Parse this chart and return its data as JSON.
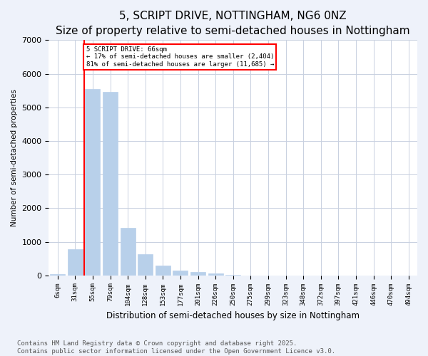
{
  "title": "5, SCRIPT DRIVE, NOTTINGHAM, NG6 0NZ",
  "subtitle": "Size of property relative to semi-detached houses in Nottingham",
  "xlabel": "Distribution of semi-detached houses by size in Nottingham",
  "ylabel": "Number of semi-detached properties",
  "categories": [
    "6sqm",
    "31sqm",
    "55sqm",
    "79sqm",
    "104sqm",
    "128sqm",
    "153sqm",
    "177sqm",
    "201sqm",
    "226sqm",
    "250sqm",
    "275sqm",
    "299sqm",
    "323sqm",
    "348sqm",
    "372sqm",
    "397sqm",
    "421sqm",
    "446sqm",
    "470sqm",
    "494sqm"
  ],
  "values": [
    30,
    780,
    5550,
    5450,
    1420,
    620,
    290,
    150,
    100,
    55,
    12,
    4,
    1,
    0,
    0,
    0,
    0,
    0,
    0,
    0,
    0
  ],
  "bar_color": "#b8d0ea",
  "bar_edge_color": "#b8d0ea",
  "vline_x": 1.5,
  "vline_color": "red",
  "vline_label_text": "5 SCRIPT DRIVE: 66sqm",
  "annotation_smaller": "← 17% of semi-detached houses are smaller (2,404)",
  "annotation_larger": "81% of semi-detached houses are larger (11,685) →",
  "annotation_box_color": "red",
  "ylim": [
    0,
    7000
  ],
  "yticks": [
    0,
    1000,
    2000,
    3000,
    4000,
    5000,
    6000,
    7000
  ],
  "footer_line1": "Contains HM Land Registry data © Crown copyright and database right 2025.",
  "footer_line2": "Contains public sector information licensed under the Open Government Licence v3.0.",
  "bg_color": "#eef2fa",
  "plot_bg_color": "#ffffff",
  "grid_color": "#c8d0e0",
  "title_fontsize": 11,
  "subtitle_fontsize": 9,
  "footer_fontsize": 6.5
}
